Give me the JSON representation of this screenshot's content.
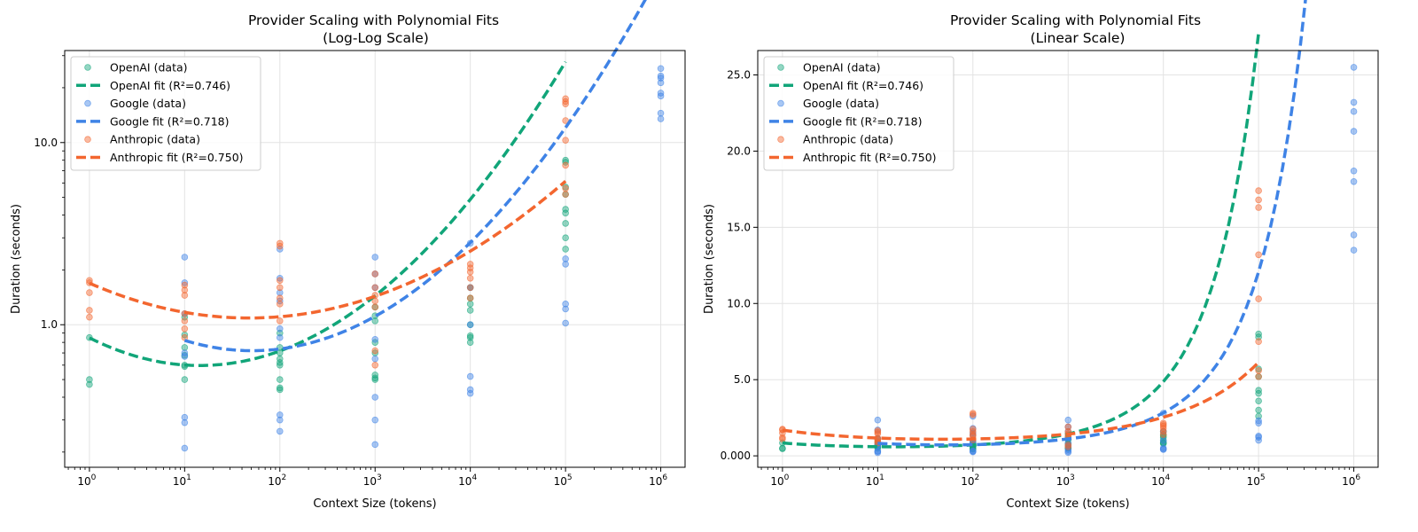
{
  "colors": {
    "OpenAI": "#11A579",
    "Google": "#3F83E6",
    "Anthropic": "#F3662F"
  },
  "chart_data": [
    {
      "type": "scatter",
      "title": "Provider Scaling with Polynomial Fits\n(Log-Log Scale)",
      "xlabel": "Context Size (tokens)",
      "ylabel": "Duration (seconds)",
      "xscale": "log",
      "yscale": "log",
      "xlim": [
        0.55,
        1800000
      ],
      "ylim": [
        0.165,
        32
      ],
      "xticks": [
        "10^0",
        "10^1",
        "10^2",
        "10^3",
        "10^4",
        "10^5",
        "10^6"
      ],
      "yticks": [
        "1.0",
        "10.0"
      ],
      "grid": true,
      "legend": "top-left",
      "legend_entries": [
        "OpenAI (data)",
        "OpenAI fit (R²=0.746)",
        "Google (data)",
        "Google fit (R²=0.718)",
        "Anthropic (data)",
        "Anthropic fit (R²=0.750)"
      ]
    },
    {
      "type": "scatter",
      "title": "Provider Scaling with Polynomial Fits\n(Linear Scale)",
      "xlabel": "Context Size (tokens)",
      "ylabel": "Duration (seconds)",
      "xscale": "log",
      "yscale": "linear",
      "xlim": [
        0.55,
        1800000
      ],
      "ylim": [
        -0.75,
        26.6
      ],
      "xticks": [
        "10^0",
        "10^1",
        "10^2",
        "10^3",
        "10^4",
        "10^5",
        "10^6"
      ],
      "yticks": [
        "0.000",
        "5.0",
        "10.0",
        "15.0",
        "20.0",
        "25.0"
      ],
      "grid": true,
      "legend": "top-left",
      "legend_entries": [
        "OpenAI (data)",
        "OpenAI fit (R²=0.746)",
        "Google (data)",
        "Google fit (R²=0.718)",
        "Anthropic (data)",
        "Anthropic fit (R²=0.750)"
      ]
    }
  ],
  "series_data": [
    {
      "name": "OpenAI",
      "x": [
        1,
        1,
        1,
        10,
        10,
        10,
        10,
        10,
        10,
        10,
        100,
        100,
        100,
        100,
        100,
        100,
        100,
        100,
        100,
        1000,
        1000,
        1000,
        1000,
        1000,
        1000,
        1000,
        1000,
        10000,
        10000,
        10000,
        10000,
        10000,
        10000,
        10000,
        10000,
        100000,
        100000,
        100000,
        100000,
        100000,
        100000,
        100000,
        100000,
        100000
      ],
      "y": [
        0.85,
        0.5,
        0.47,
        0.88,
        0.75,
        0.68,
        0.6,
        0.59,
        0.5,
        1.1,
        0.75,
        0.7,
        0.65,
        0.62,
        0.6,
        0.5,
        0.45,
        0.44,
        0.9,
        1.25,
        1.12,
        1.05,
        0.8,
        0.7,
        0.53,
        0.51,
        0.5,
        1.6,
        1.4,
        1.3,
        1.2,
        1.0,
        0.87,
        0.85,
        0.8,
        8.0,
        7.8,
        5.7,
        5.2,
        4.3,
        4.1,
        3.6,
        3.0,
        2.6
      ],
      "fit": {
        "R2": 0.746,
        "x": [
          1,
          100000
        ],
        "coef_log10": [
          -0.072,
          -0.262,
          0.113
        ]
      }
    },
    {
      "name": "Google",
      "x": [
        10,
        10,
        10,
        10,
        10,
        10,
        10,
        10,
        100,
        100,
        100,
        100,
        100,
        100,
        100,
        100,
        100,
        1000,
        1000,
        1000,
        1000,
        1000,
        1000,
        1000,
        1000,
        10000,
        10000,
        10000,
        10000,
        10000,
        10000,
        100000,
        100000,
        100000,
        100000,
        100000,
        1000000,
        1000000,
        1000000,
        1000000,
        1000000,
        1000000,
        1000000,
        1000000
      ],
      "y": [
        2.35,
        1.7,
        1.15,
        0.7,
        0.67,
        0.31,
        0.29,
        0.21,
        2.6,
        1.8,
        1.5,
        1.35,
        0.95,
        0.85,
        0.32,
        0.3,
        0.26,
        2.35,
        1.9,
        1.6,
        0.83,
        0.65,
        0.4,
        0.3,
        0.22,
        2.8,
        1.6,
        1.0,
        0.52,
        0.44,
        0.42,
        2.3,
        2.15,
        1.3,
        1.22,
        1.02,
        25.5,
        23.2,
        22.6,
        21.3,
        18.7,
        18.0,
        14.5,
        13.5
      ],
      "fit": {
        "R2": 0.718,
        "x": [
          10,
          1000000
        ],
        "coef_log10": [
          0.187,
          -0.386,
          0.113
        ]
      }
    },
    {
      "name": "Anthropic",
      "x": [
        1,
        1,
        1,
        1,
        1,
        10,
        10,
        10,
        10,
        10,
        10,
        10,
        100,
        100,
        100,
        100,
        100,
        100,
        100,
        1000,
        1000,
        1000,
        1000,
        1000,
        1000,
        1000,
        10000,
        10000,
        10000,
        10000,
        10000,
        10000,
        100000,
        100000,
        100000,
        100000,
        100000,
        100000,
        100000,
        100000
      ],
      "y": [
        1.75,
        1.7,
        1.5,
        1.2,
        1.1,
        1.65,
        1.55,
        1.45,
        1.15,
        1.05,
        0.95,
        0.85,
        2.8,
        2.7,
        1.75,
        1.6,
        1.4,
        1.3,
        1.05,
        1.9,
        1.6,
        1.45,
        1.35,
        1.25,
        0.72,
        0.6,
        2.15,
        2.05,
        1.95,
        1.8,
        1.6,
        1.4,
        17.4,
        16.8,
        16.3,
        13.2,
        10.3,
        7.5,
        5.6,
        5.2
      ],
      "fit": {
        "R2": 0.75,
        "x": [
          1,
          100000
        ],
        "coef_log10": [
          0.228,
          -0.228,
          0.068
        ]
      }
    }
  ]
}
